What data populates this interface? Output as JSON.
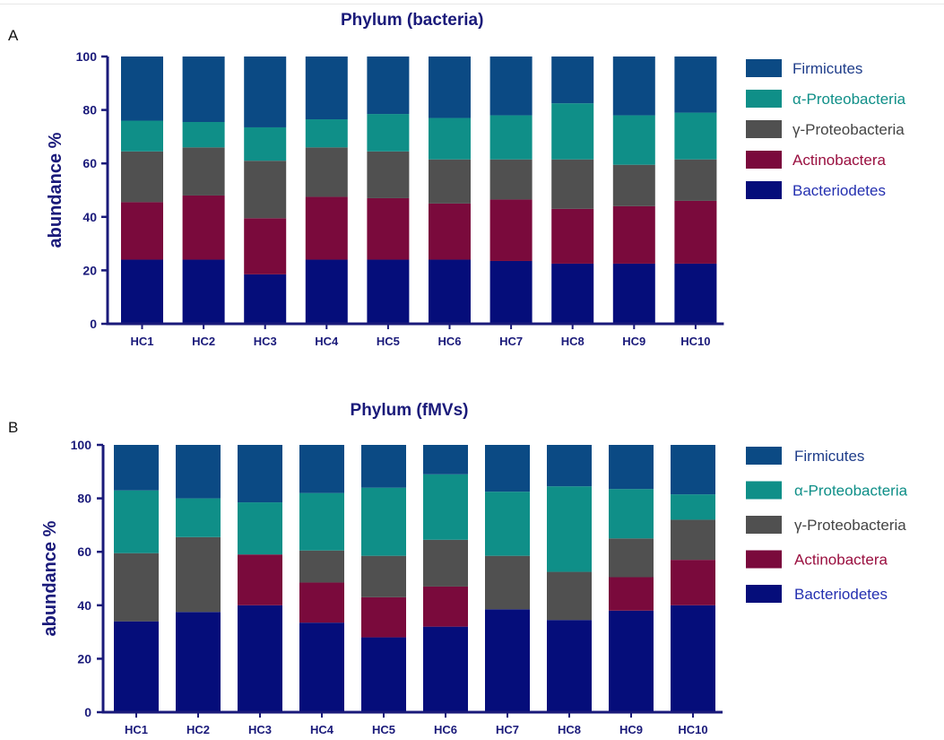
{
  "panels": [
    {
      "letter": "A"
    },
    {
      "letter": "B"
    }
  ],
  "colors": {
    "axis": "#1a1a7a",
    "title": "#1a1a7a",
    "Firmicutes": "#0b4a84",
    "alpha_Proteobacteria": "#0f8f88",
    "gamma_Proteobacteria": "#505050",
    "Actinobactera": "#7a0a3c",
    "Bacteriodetes": "#050d7a"
  },
  "chart_data": [
    {
      "type": "bar",
      "stacked": true,
      "title": "Phylum (bacteria)",
      "xlabel": "",
      "ylabel": "abundance %",
      "ylim": [
        0,
        100
      ],
      "yticks": [
        0,
        20,
        40,
        60,
        80,
        100
      ],
      "legend_position": "right",
      "categories": [
        "HC1",
        "HC2",
        "HC3",
        "HC4",
        "HC5",
        "HC6",
        "HC7",
        "HC8",
        "HC9",
        "HC10"
      ],
      "series": [
        {
          "name": "Bacteriodetes",
          "color": "#050d7a",
          "values": [
            24,
            24,
            18.5,
            24,
            24,
            24,
            23.5,
            22.5,
            22.5,
            22.5
          ]
        },
        {
          "name": "Actinobactera",
          "color": "#7a0a3c",
          "values": [
            21.5,
            24,
            21,
            23.5,
            23,
            21,
            23,
            20.5,
            21.5,
            23.5
          ]
        },
        {
          "name": "γ-Proteobacteria",
          "color": "#505050",
          "values": [
            19,
            18,
            21.5,
            18.5,
            17.5,
            16.5,
            15,
            18.5,
            15.5,
            15.5
          ]
        },
        {
          "name": "α-Proteobacteria",
          "color": "#0f8f88",
          "values": [
            11.5,
            9.5,
            12.5,
            10.5,
            14,
            15.5,
            16.5,
            21,
            18.5,
            17.5
          ]
        },
        {
          "name": "Firmicutes",
          "color": "#0b4a84",
          "values": [
            24,
            24.5,
            26.5,
            23.5,
            21.5,
            23,
            22,
            17.5,
            22,
            21
          ]
        }
      ],
      "legend": [
        "Firmicutes",
        "α-Proteobacteria",
        "γ-Proteobacteria",
        "Actinobactera",
        "Bacteriodetes"
      ]
    },
    {
      "type": "bar",
      "stacked": true,
      "title": "Phylum (fMVs)",
      "xlabel": "",
      "ylabel": "abundance %",
      "ylim": [
        0,
        100
      ],
      "yticks": [
        0,
        20,
        40,
        60,
        80,
        100
      ],
      "legend_position": "right",
      "categories": [
        "HC1",
        "HC2",
        "HC3",
        "HC4",
        "HC5",
        "HC6",
        "HC7",
        "HC8",
        "HC9",
        "HC10"
      ],
      "series": [
        {
          "name": "Bacteriodetes",
          "color": "#050d7a",
          "values": [
            34,
            37.5,
            40,
            33.5,
            28,
            32,
            38.5,
            34.5,
            38,
            40
          ]
        },
        {
          "name": "Actinobactera",
          "color": "#7a0a3c",
          "values": [
            0,
            0,
            19,
            15,
            15,
            15,
            0,
            0,
            12.5,
            17
          ]
        },
        {
          "name": "γ-Proteobacteria",
          "color": "#505050",
          "values": [
            25.5,
            28,
            0,
            12,
            15.5,
            17.5,
            20,
            18,
            14.5,
            15
          ]
        },
        {
          "name": "α-Proteobacteria",
          "color": "#0f8f88",
          "values": [
            23.5,
            14.5,
            19.5,
            21.5,
            25.5,
            24.5,
            24,
            32,
            18.5,
            9.5
          ]
        },
        {
          "name": "Firmicutes",
          "color": "#0b4a84",
          "values": [
            17,
            20,
            21.5,
            18,
            16,
            11,
            17.5,
            15.5,
            16.5,
            18.5
          ]
        }
      ],
      "legend": [
        "Firmicutes",
        "α-Proteobacteria",
        "γ-Proteobacteria",
        "Actinobactera",
        "Bacteriodetes"
      ]
    }
  ]
}
